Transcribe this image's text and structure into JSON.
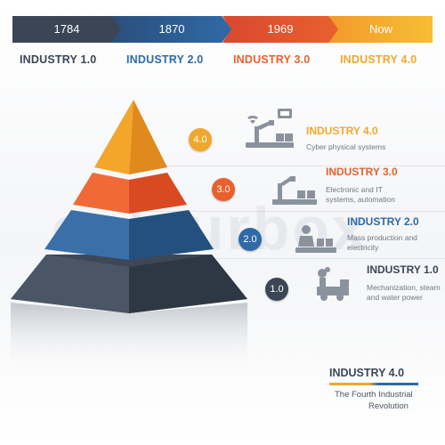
{
  "timeline": [
    {
      "label": "1784",
      "color": "#3a4656"
    },
    {
      "label": "1870",
      "color": "#2f6aa6"
    },
    {
      "label": "1969",
      "color": "#e8612d"
    },
    {
      "label": "Now",
      "color": "#f0a82c"
    }
  ],
  "eras": [
    {
      "label": "INDUSTRY 1.0",
      "color": "#3a4656"
    },
    {
      "label": "INDUSTRY 2.0",
      "color": "#2f6aa6"
    },
    {
      "label": "INDUSTRY 3.0",
      "color": "#e8612d"
    },
    {
      "label": "INDUSTRY 4.0",
      "color": "#f0a82c"
    }
  ],
  "levels": [
    {
      "badge": "4.0",
      "title": "INDUSTRY 4.0",
      "desc": [
        "Cyber physical systems"
      ],
      "color": "#f0a82c",
      "icon": "robot-arm-wifi-icon"
    },
    {
      "badge": "3.0",
      "title": "INDUSTRY 3.0",
      "desc": [
        "Electronic and IT",
        "systems, automation"
      ],
      "color": "#e8612d",
      "icon": "robot-arm-conveyor-icon"
    },
    {
      "badge": "2.0",
      "title": "INDUSTRY 2.0",
      "desc": [
        "Mass production and",
        "electricity"
      ],
      "color": "#2f6aa6",
      "icon": "assembly-worker-icon"
    },
    {
      "badge": "1.0",
      "title": "INDUSTRY 1.0",
      "desc": [
        "Mechanization, steam",
        "and water power"
      ],
      "color": "#3a4656",
      "icon": "steam-engine-icon"
    }
  ],
  "footer": {
    "title": "INDUSTRY 4.0",
    "subtitle_line1": "The Fourth Industrial",
    "subtitle_line2": "Revolution",
    "rule_colors": [
      "#f0a82c",
      "#2f6aa6"
    ]
  },
  "watermark": "colourbox"
}
